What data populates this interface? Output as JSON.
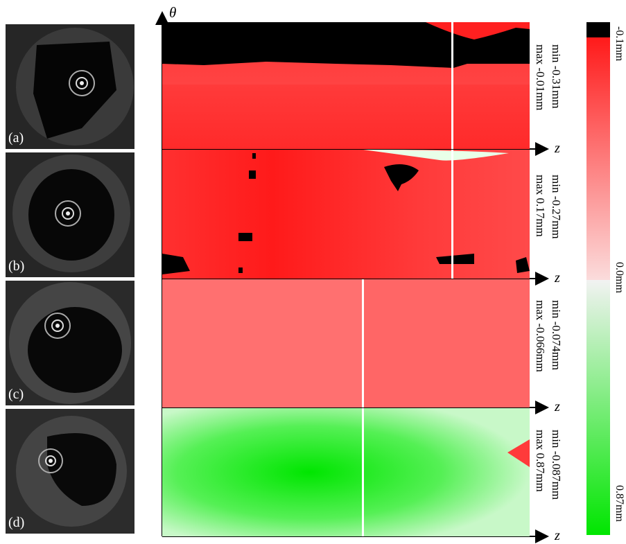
{
  "axes": {
    "vertical_label": "θ",
    "horizontal_label": "z"
  },
  "panels": [
    {
      "label": "(a)",
      "min": "min -0.31mm",
      "max": "max -0.01mm"
    },
    {
      "label": "(b)",
      "min": "min -0.27mm",
      "max": "max 0.17mm"
    },
    {
      "label": "(c)",
      "min": "min -0.074mm",
      "max": "max -0.066mm"
    },
    {
      "label": "(d)",
      "min": "min -0.087mm",
      "max": "max 0.87mm"
    }
  ],
  "colorbar": {
    "ticks": [
      "-0.1mm",
      "0.0mm",
      "0.87mm"
    ],
    "colors": {
      "black": "#000000",
      "red": "#ff1a1a",
      "white": "#f2f2f2",
      "green": "#00e600"
    }
  }
}
